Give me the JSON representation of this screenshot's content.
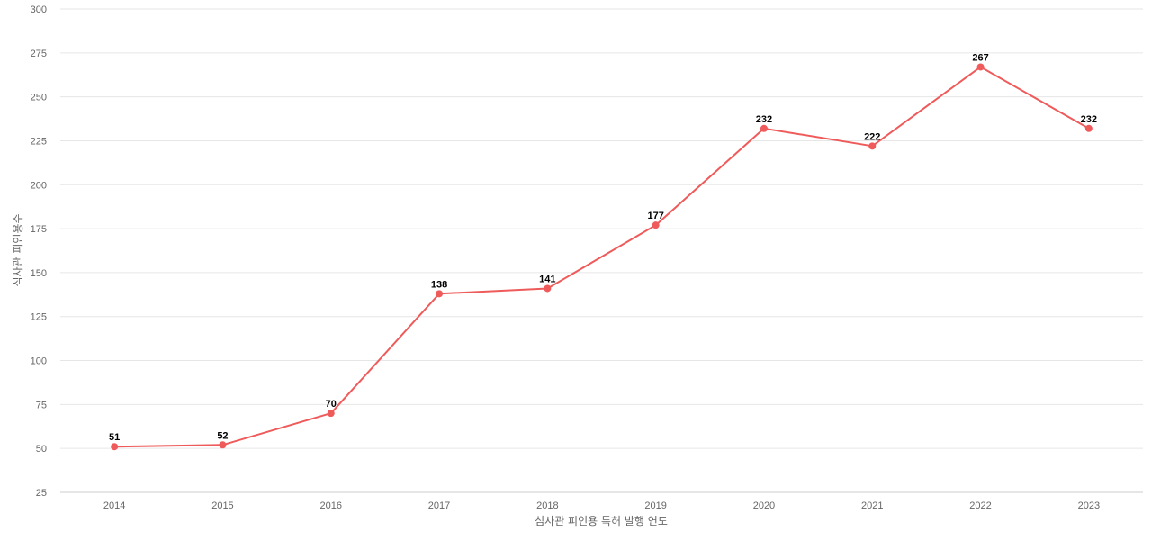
{
  "chart_data": {
    "type": "line",
    "title": "",
    "xlabel": "심사관 피인용 특허 발행 연도",
    "ylabel": "심사관 피인용수",
    "categories": [
      "2014",
      "2015",
      "2016",
      "2017",
      "2018",
      "2019",
      "2020",
      "2021",
      "2022",
      "2023"
    ],
    "series": [
      {
        "values": [
          51,
          52,
          70,
          138,
          141,
          177,
          232,
          222,
          267,
          232
        ]
      }
    ],
    "ylim": [
      25,
      300
    ],
    "yticks": [
      25,
      50,
      75,
      100,
      125,
      150,
      175,
      200,
      225,
      250,
      275,
      300
    ],
    "grid": true,
    "legend": "none",
    "color": "#ef5a5a"
  }
}
